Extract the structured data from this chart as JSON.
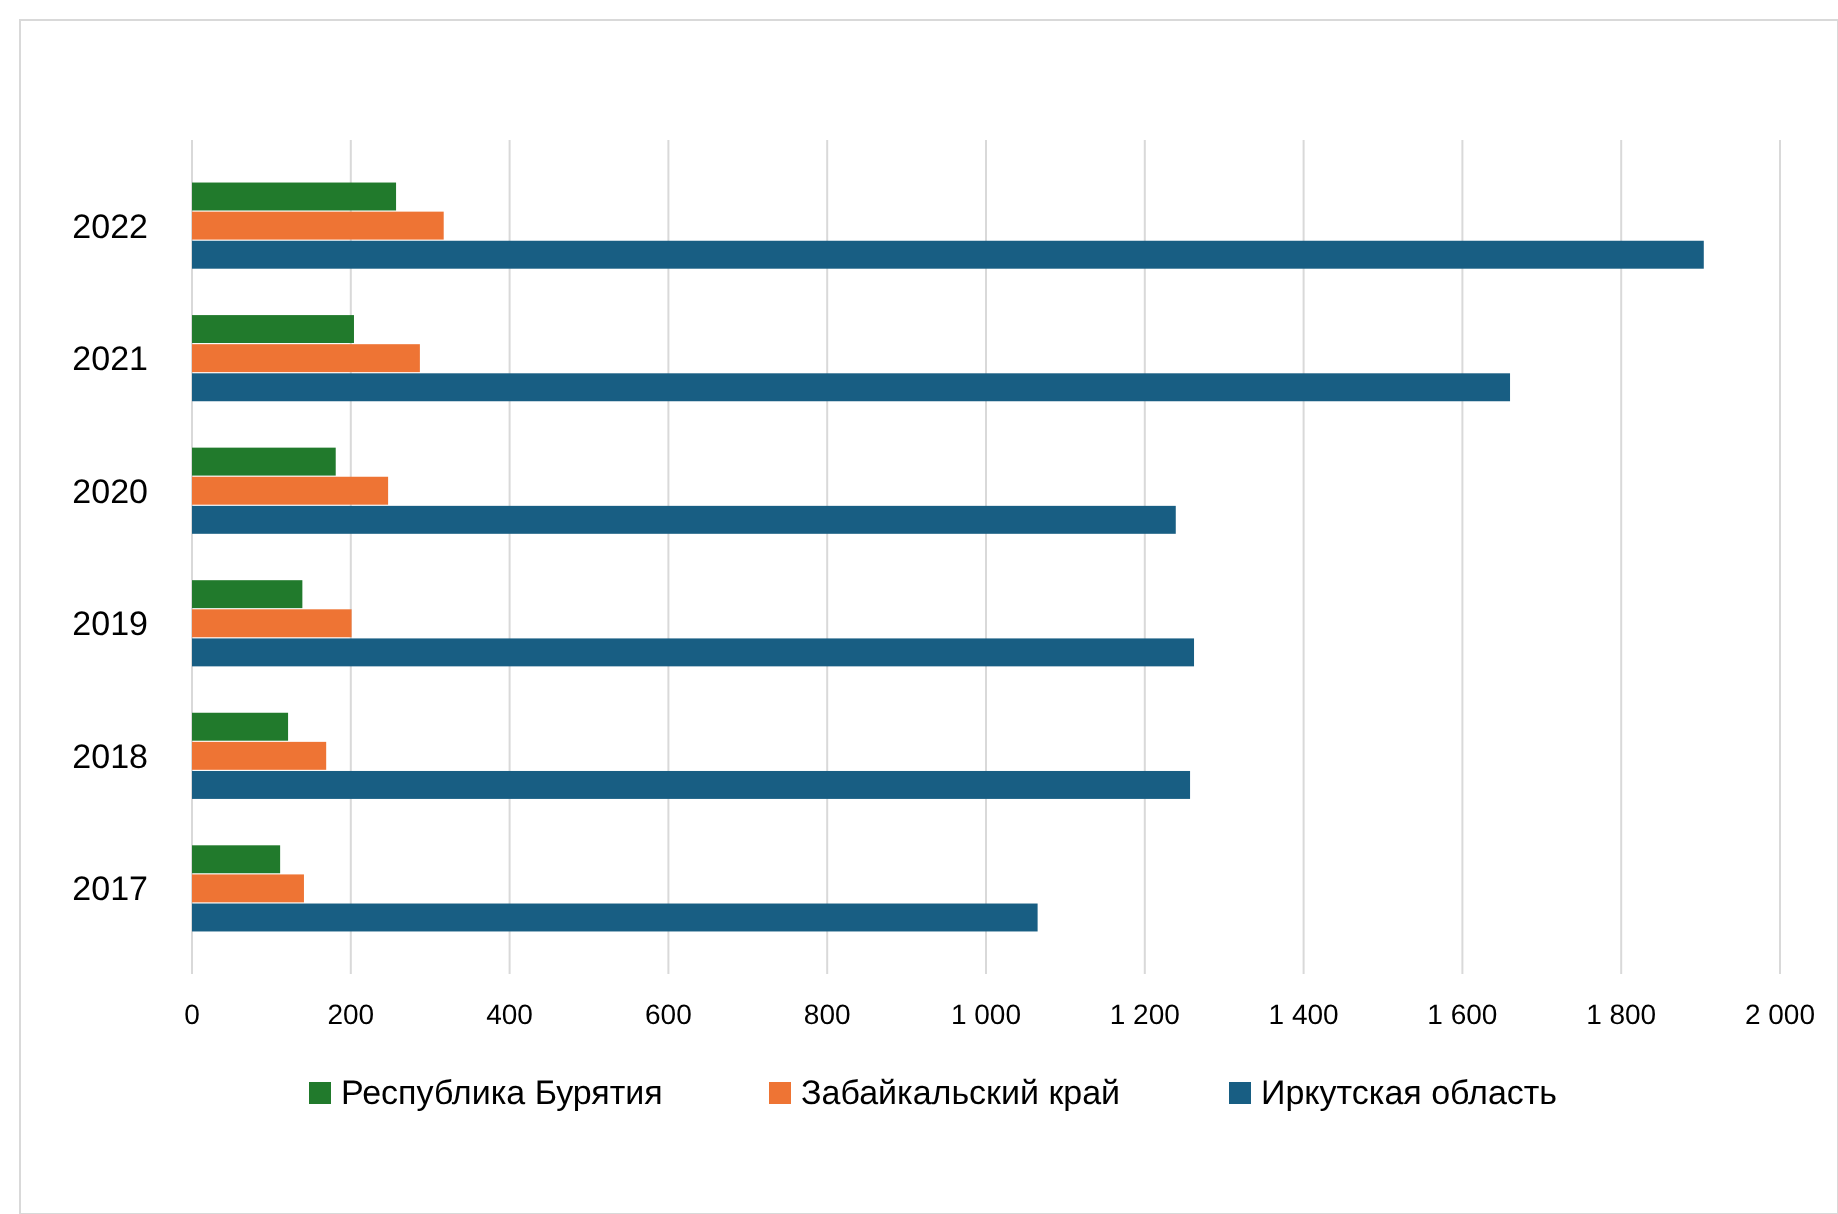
{
  "chart_data": {
    "type": "bar",
    "orientation": "horizontal",
    "categories": [
      "2022",
      "2021",
      "2020",
      "2019",
      "2018",
      "2017"
    ],
    "series": [
      {
        "name": "Республика Бурятия",
        "color": "#217a2c",
        "values": [
          257,
          204,
          181,
          139,
          121,
          111
        ]
      },
      {
        "name": "Забайкальский край",
        "color": "#ee7434",
        "values": [
          317,
          287,
          247,
          201,
          169,
          141
        ]
      },
      {
        "name": "Иркутская область",
        "color": "#185e83",
        "values": [
          1904,
          1660,
          1239,
          1262,
          1257,
          1065
        ]
      }
    ],
    "xlim": [
      0,
      2000
    ],
    "xticks": [
      0,
      200,
      400,
      600,
      800,
      {
        "value": 1000,
        "label": "1 000"
      },
      {
        "value": 1200,
        "label": "1 200"
      },
      {
        "value": 1400,
        "label": "1 400"
      },
      {
        "value": 1600,
        "label": "1 600"
      },
      {
        "value": 1800,
        "label": "1 800"
      },
      {
        "value": 2000,
        "label": "2 000"
      }
    ],
    "grid": "x",
    "legend": "bottom"
  }
}
